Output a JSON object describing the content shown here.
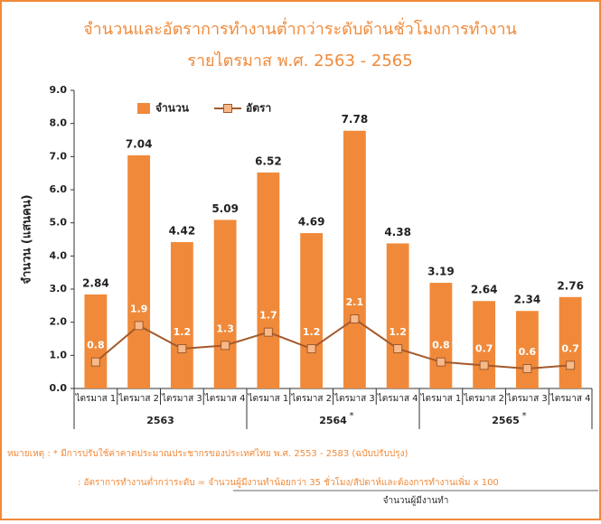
{
  "chart_data": {
    "type": "bar",
    "title": "จำนวนและอัตราการทำงานต่ำกว่าระดับด้านชั่วโมงการทำงาน",
    "subtitle": "รายไตรมาส พ.ศ. 2563 - 2565",
    "y_label": "จำนวน (แสนคน)",
    "categories": [
      "ไตรมาส 1",
      "ไตรมาส 2",
      "ไตรมาส 3",
      "ไตรมาส 4",
      "ไตรมาส 1",
      "ไตรมาส 2",
      "ไตรมาส 3",
      "ไตรมาส 4",
      "ไตรมาส 1",
      "ไตรมาส 2",
      "ไตรมาส 3",
      "ไตรมาส 4"
    ],
    "groups": [
      "2563",
      "2564",
      "2565"
    ],
    "group_notes": [
      null,
      "*",
      "*"
    ],
    "series": [
      {
        "name": "จำนวน",
        "type": "bar",
        "color": "#f08a3a",
        "values": [
          2.84,
          7.04,
          4.42,
          5.09,
          6.52,
          4.69,
          7.78,
          4.38,
          3.19,
          2.64,
          2.34,
          2.76
        ]
      },
      {
        "name": "อัตรา",
        "type": "line",
        "color": "#a35a2c",
        "values": [
          0.8,
          1.9,
          1.2,
          1.3,
          1.7,
          1.2,
          2.1,
          1.2,
          0.8,
          0.7,
          0.6,
          0.7
        ]
      }
    ],
    "ylim": [
      0,
      9
    ],
    "yticks": [
      {
        "value": 0,
        "label": "0.0"
      },
      {
        "value": 1,
        "label": "1.0"
      },
      {
        "value": 2,
        "label": "2.0"
      },
      {
        "value": 3,
        "label": "3.0"
      },
      {
        "value": 4,
        "label": "4.0"
      },
      {
        "value": 5,
        "label": "5.0"
      },
      {
        "value": 6,
        "label": "6.0"
      },
      {
        "value": 7,
        "label": "7.0"
      },
      {
        "value": 8,
        "label": "8.0"
      },
      {
        "value": 9,
        "label": "9.0"
      }
    ],
    "legend": "top-left",
    "notes": [
      "หมายเหตุ : * มีการปรับใช้ค่าคาดประมาณประชากรของประเทศไทย พ.ศ. 2553 - 2583 (ฉบับปรับปรุง)",
      ": อัตราการทำงานต่ำกว่าระดับ = จำนวนผู้มีงานทำน้อยกว่า 35 ชั่วโมง/สัปดาห์และต้องการทำงานเพิ่ม x 100",
      "จำนวนผู้มีงานทำ"
    ]
  }
}
